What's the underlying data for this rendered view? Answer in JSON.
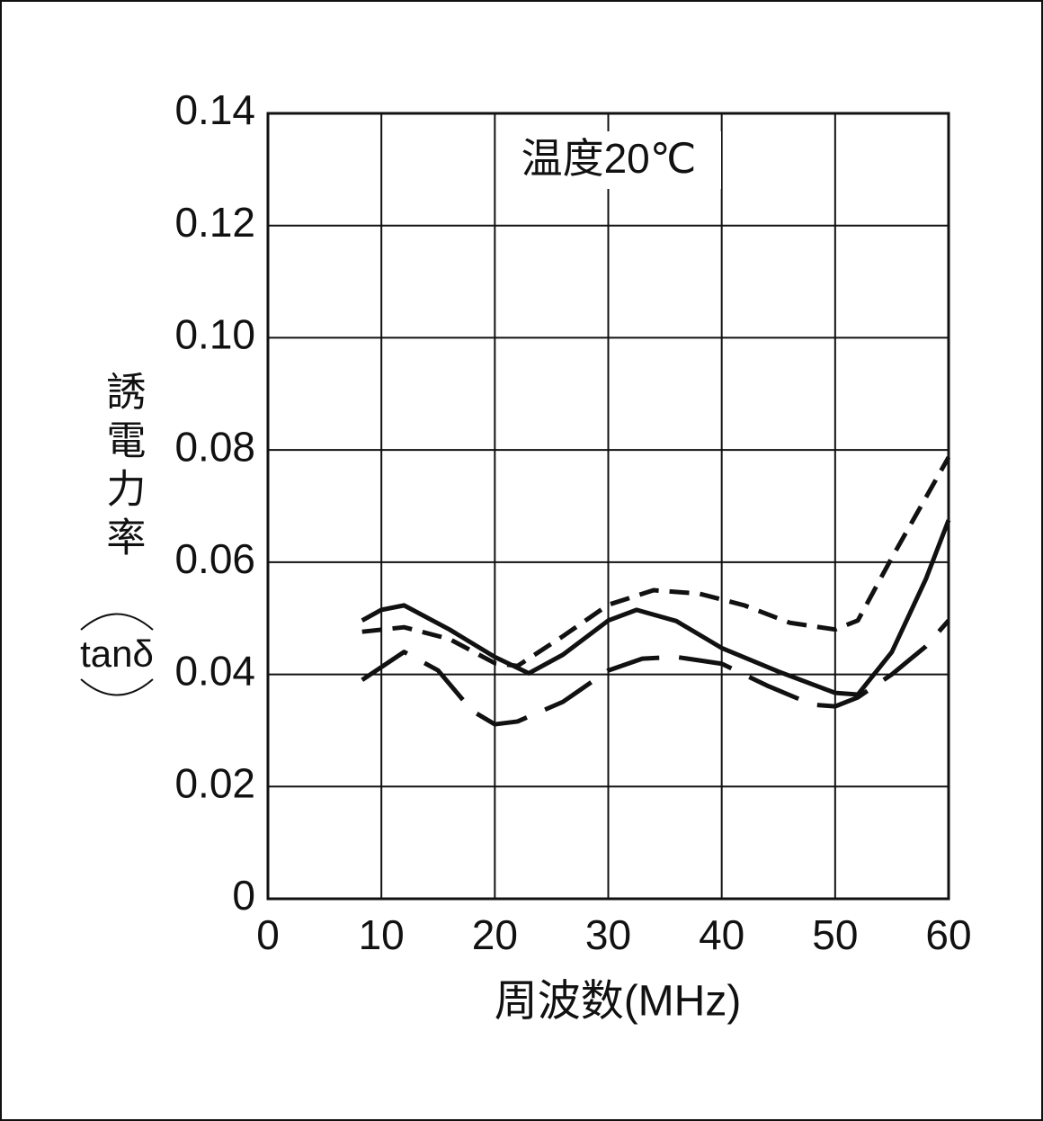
{
  "chart_data": {
    "type": "line",
    "annotation": "温度20℃",
    "x_label": "周波数(MHz)",
    "y_label": "誘電力率",
    "y_label_sub": "tanδ",
    "xlim": [
      0,
      60
    ],
    "xticks": [
      0,
      10,
      20,
      30,
      40,
      50,
      60
    ],
    "ylim": [
      0,
      0.14
    ],
    "yticks": [
      0,
      0.02,
      0.04,
      0.06,
      0.08,
      {
        "value": 0.1,
        "label": "0.10"
      },
      0.12,
      0.14
    ],
    "grid": true,
    "series": [
      {
        "color": "#111111",
        "dash": "solid",
        "x": [
          8.3,
          10,
          12,
          16,
          20,
          23,
          26,
          30,
          32.5,
          36,
          40,
          45,
          50,
          52,
          55,
          58,
          60
        ],
        "values": [
          0.0496,
          0.0515,
          0.0523,
          0.048,
          0.0431,
          0.0402,
          0.0435,
          0.0496,
          0.0515,
          0.0495,
          0.0447,
          0.0405,
          0.0367,
          0.0364,
          0.044,
          0.057,
          0.0675
        ]
      },
      {
        "color": "#111111",
        "dash": "short",
        "x": [
          8.3,
          12,
          16,
          20,
          22,
          26,
          30,
          34,
          38,
          42,
          46,
          50,
          52,
          55,
          60
        ],
        "values": [
          0.0476,
          0.0484,
          0.0463,
          0.042,
          0.0415,
          0.0468,
          0.0524,
          0.055,
          0.0544,
          0.0523,
          0.0492,
          0.048,
          0.0496,
          0.0608,
          0.0787
        ]
      },
      {
        "color": "#111111",
        "dash": "long",
        "x": [
          8.3,
          12,
          15,
          18,
          20,
          22,
          26,
          30,
          33,
          36,
          40,
          44,
          48,
          50,
          52,
          55,
          58,
          60
        ],
        "values": [
          0.039,
          0.044,
          0.0407,
          0.0335,
          0.0311,
          0.0316,
          0.0351,
          0.0407,
          0.0428,
          0.0431,
          0.0419,
          0.038,
          0.0346,
          0.0343,
          0.0359,
          0.04,
          0.045,
          0.0496
        ]
      }
    ]
  }
}
